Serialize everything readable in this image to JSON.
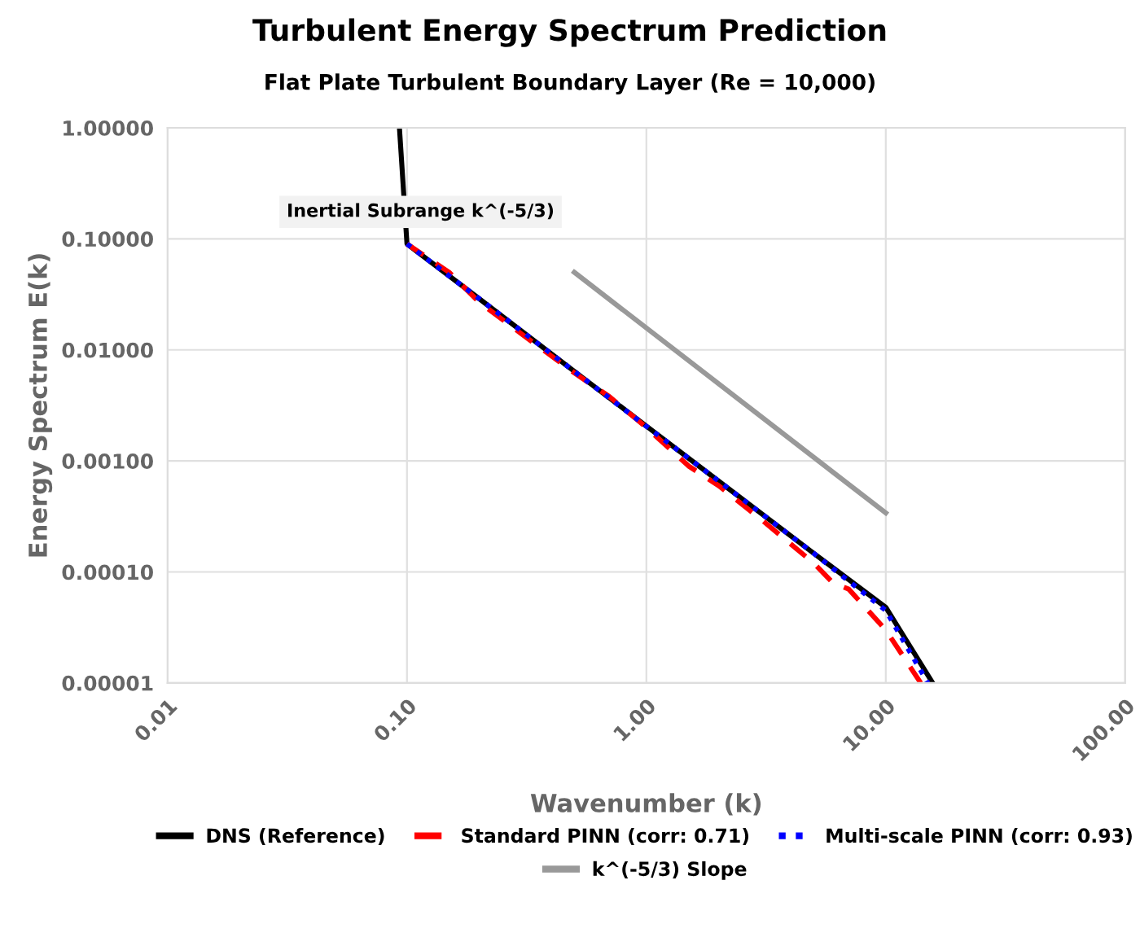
{
  "chart_data": {
    "type": "line",
    "title": "Turbulent Energy Spectrum Prediction",
    "subtitle": "Flat Plate Turbulent Boundary Layer (Re = 10,000)",
    "xlabel": "Wavenumber (k)",
    "ylabel": "Energy Spectrum E(k)",
    "log": "xy",
    "grid": true,
    "legend": "bottom",
    "marker": "none",
    "xlim": [
      0.01,
      100
    ],
    "xticks": [
      {
        "value": 0.01,
        "label": "0.01"
      },
      {
        "value": 0.1,
        "label": "0.10"
      },
      {
        "value": 1,
        "label": "1.00"
      },
      {
        "value": 10,
        "label": "10.00"
      },
      {
        "value": 100,
        "label": "100.00"
      }
    ],
    "ylim": [
      1e-05,
      1
    ],
    "yticks": [
      {
        "value": 1e-05,
        "label": "0.00001"
      },
      {
        "value": 0.0001,
        "label": "0.00010"
      },
      {
        "value": 0.001,
        "label": "0.00100"
      },
      {
        "value": 0.01,
        "label": "0.01000"
      },
      {
        "value": 0.1,
        "label": "0.10000"
      },
      {
        "value": 1,
        "label": "1.00000"
      }
    ],
    "annotations": [
      {
        "text": "Inertial Subrange k^(-5/3)",
        "x": 0.1,
        "y": 0.1
      }
    ],
    "series": [
      {
        "name": "DNS (Reference)",
        "color": "#000000",
        "line_style": "solid",
        "x": [
          0.093,
          0.1,
          0.2,
          0.5,
          1,
          2,
          5,
          10,
          15.7
        ],
        "values": [
          1.0,
          0.09,
          0.029,
          0.0064,
          0.00206,
          0.00066,
          0.000147,
          4.8e-05,
          1e-05
        ]
      },
      {
        "name": "Standard PINN (corr: 0.71)",
        "color": "#ff0000",
        "line_style": "dashed",
        "x": [
          0.1,
          0.15,
          0.2,
          0.3,
          0.5,
          0.7,
          1,
          1.5,
          2,
          3,
          5,
          6,
          7,
          10,
          14
        ],
        "values": [
          0.09,
          0.05,
          0.027,
          0.014,
          0.0062,
          0.0038,
          0.002,
          0.0009,
          0.0006,
          0.0003,
          0.00012,
          8e-05,
          7e-05,
          3e-05,
          1e-05
        ]
      },
      {
        "name": "Multi-scale PINN (corr: 0.93)",
        "color": "#0000ff",
        "line_style": "dotted",
        "x": [
          0.1,
          0.2,
          0.5,
          1,
          2,
          5,
          10,
          15
        ],
        "values": [
          0.09,
          0.029,
          0.0064,
          0.00205,
          0.00066,
          0.000147,
          4.5e-05,
          1e-05
        ]
      },
      {
        "name": "k^(-5/3) Slope",
        "color": "#999999",
        "line_style": "solid",
        "x": [
          0.5,
          10
        ],
        "values": [
          0.05,
          0.00034
        ]
      }
    ]
  }
}
